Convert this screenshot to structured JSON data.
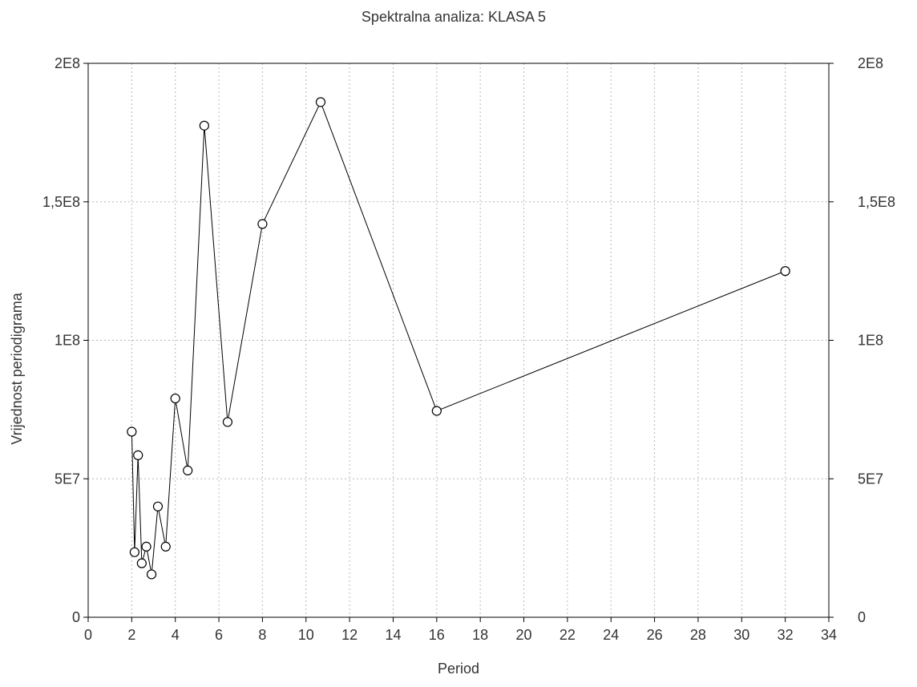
{
  "chart_data": {
    "type": "line",
    "title": "Spektralna analiza: KLASA 5",
    "xlabel": "Period",
    "ylabel": "Vrijednost periodigrama",
    "xlim": [
      0,
      34
    ],
    "ylim": [
      0,
      200000000
    ],
    "x_ticks": [
      0,
      2,
      4,
      6,
      8,
      10,
      12,
      14,
      16,
      18,
      20,
      22,
      24,
      26,
      28,
      30,
      32,
      34
    ],
    "x_tick_labels": [
      "0",
      "2",
      "4",
      "6",
      "8",
      "10",
      "12",
      "14",
      "16",
      "18",
      "20",
      "22",
      "24",
      "26",
      "28",
      "30",
      "32",
      "34"
    ],
    "y_ticks": [
      0,
      50000000,
      100000000,
      150000000,
      200000000
    ],
    "y_tick_labels": [
      "0",
      "5E7",
      "1E8",
      "1,5E8",
      "2E8"
    ],
    "grid": true,
    "marker": "open-circle",
    "line_color": "#000000",
    "x": [
      2.0,
      2.13,
      2.29,
      2.46,
      2.67,
      2.91,
      3.2,
      3.56,
      4.0,
      4.57,
      5.33,
      6.4,
      8.0,
      10.67,
      16.0,
      32.0
    ],
    "y": [
      67000000,
      23500000,
      58500000,
      19500000,
      25500000,
      15500000,
      40000000,
      25500000,
      79000000,
      53000000,
      177500000,
      70500000,
      142000000,
      186000000,
      74500000,
      125000000
    ]
  }
}
